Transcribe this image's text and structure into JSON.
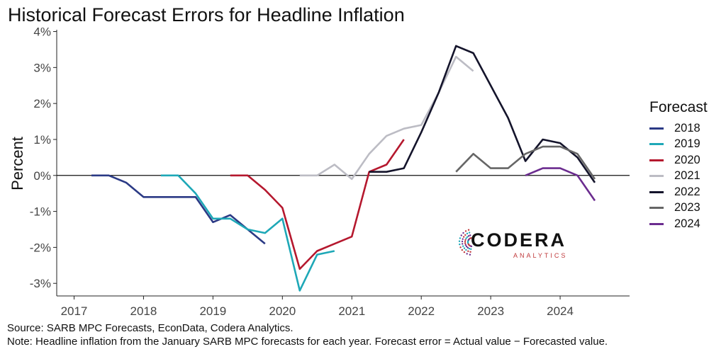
{
  "chart_data": {
    "type": "line",
    "title": "Historical Forecast Errors for Headline Inflation",
    "xlabel": "",
    "ylabel": "Percent",
    "xlim": [
      2016.75,
      2025.0
    ],
    "ylim": [
      -3.35,
      4.05
    ],
    "x_ticks": [
      2017,
      2018,
      2019,
      2020,
      2021,
      2022,
      2023,
      2024
    ],
    "y_ticks": [
      -3,
      -2,
      -1,
      0,
      1,
      2,
      3,
      4
    ],
    "y_tick_labels": [
      "-3%",
      "-2%",
      "-1%",
      "0%",
      "1%",
      "2%",
      "3%",
      "4%"
    ],
    "zero_line": true,
    "grid": false,
    "legend_title": "Forecast",
    "legend_position": "right",
    "series": [
      {
        "name": "2018",
        "color": "#2b3a85",
        "x": [
          2017.25,
          2017.5,
          2017.75,
          2018.0,
          2018.25,
          2018.5,
          2018.75,
          2019.0,
          2019.25,
          2019.5,
          2019.75
        ],
        "y": [
          0.0,
          0.0,
          -0.2,
          -0.6,
          -0.6,
          -0.6,
          -0.6,
          -1.3,
          -1.1,
          -1.5,
          -1.9
        ]
      },
      {
        "name": "2019",
        "color": "#1ea8b7",
        "x": [
          2018.25,
          2018.5,
          2018.75,
          2019.0,
          2019.25,
          2019.5,
          2019.75,
          2020.0,
          2020.25,
          2020.5,
          2020.75
        ],
        "y": [
          0.0,
          0.0,
          -0.5,
          -1.2,
          -1.2,
          -1.5,
          -1.6,
          -1.2,
          -3.2,
          -2.2,
          -2.1
        ]
      },
      {
        "name": "2020",
        "color": "#b5182e",
        "x": [
          2019.25,
          2019.5,
          2019.75,
          2020.0,
          2020.25,
          2020.5,
          2020.75,
          2021.0,
          2021.25,
          2021.5,
          2021.75
        ],
        "y": [
          0.0,
          0.0,
          -0.4,
          -0.9,
          -2.6,
          -2.1,
          -1.9,
          -1.7,
          0.1,
          0.3,
          1.0
        ]
      },
      {
        "name": "2021",
        "color": "#bcbcc4",
        "x": [
          2020.25,
          2020.5,
          2020.75,
          2021.0,
          2021.25,
          2021.5,
          2021.75,
          2022.0,
          2022.25,
          2022.5,
          2022.75
        ],
        "y": [
          0.0,
          0.0,
          0.3,
          -0.1,
          0.6,
          1.1,
          1.3,
          1.4,
          2.3,
          3.3,
          2.9
        ]
      },
      {
        "name": "2022",
        "color": "#14142b",
        "x": [
          2021.25,
          2021.5,
          2021.75,
          2022.0,
          2022.25,
          2022.5,
          2022.75,
          2023.0,
          2023.25,
          2023.5,
          2023.75,
          2024.0,
          2024.25,
          2024.5
        ],
        "y": [
          0.1,
          0.1,
          0.2,
          1.2,
          2.3,
          3.6,
          3.4,
          2.5,
          1.6,
          0.4,
          1.0,
          0.9,
          0.5,
          -0.2
        ]
      },
      {
        "name": "2023",
        "color": "#666666",
        "x": [
          2022.5,
          2022.75,
          2023.0,
          2023.25,
          2023.5,
          2023.75,
          2024.0,
          2024.25,
          2024.5
        ],
        "y": [
          0.1,
          0.6,
          0.2,
          0.2,
          0.6,
          0.8,
          0.8,
          0.6,
          -0.1
        ]
      },
      {
        "name": "2024",
        "color": "#6b2c8f",
        "x": [
          2023.5,
          2023.75,
          2024.0,
          2024.25,
          2024.5
        ],
        "y": [
          0.0,
          0.2,
          0.2,
          0.0,
          -0.7
        ]
      }
    ]
  },
  "notes": {
    "source": "Source: SARB MPC Forecasts, EconData, Codera Analytics.",
    "note": "Note: Headline inflation from the January SARB MPC forecasts for each year. Forecast error = Actual value − Forecasted value."
  },
  "logo": {
    "word": "CODERA",
    "sub": "ANALYTICS",
    "colors": [
      "#c0393b",
      "#1ea8b7",
      "#6b2c8f"
    ]
  }
}
